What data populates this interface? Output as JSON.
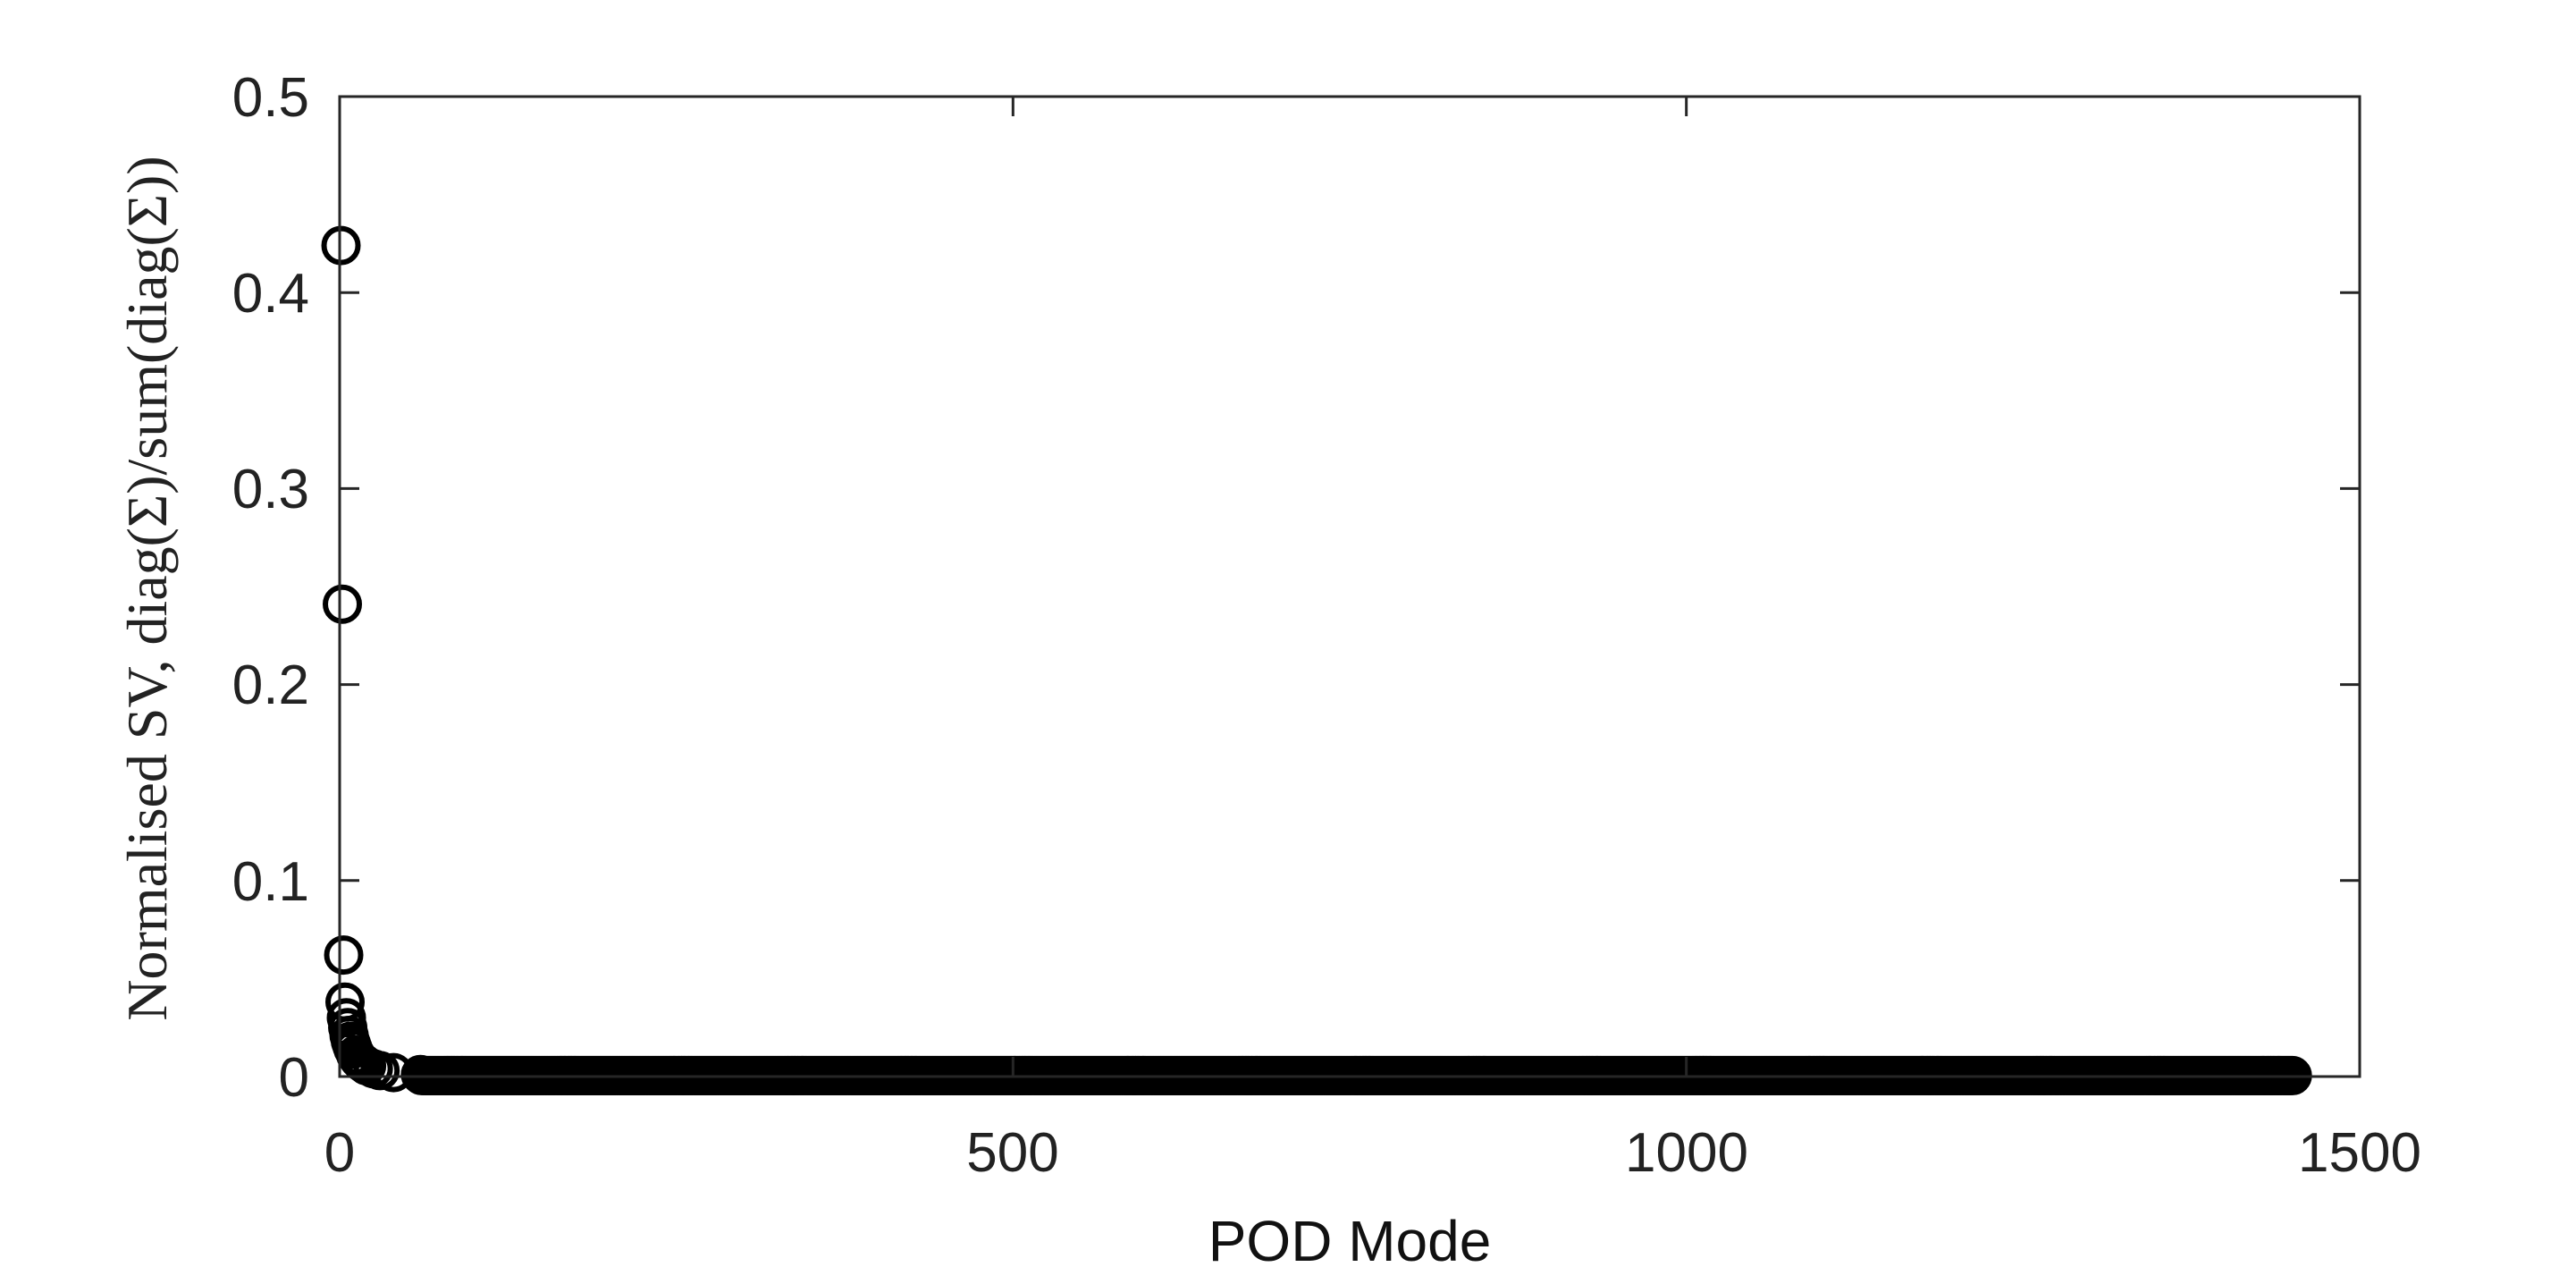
{
  "chart_data": {
    "type": "scatter",
    "title": "",
    "xlabel": "POD Mode",
    "ylabel": "Normalised SV, diag(Σ)/sum(diag(Σ))",
    "xlim": [
      0,
      1500
    ],
    "ylim": [
      0,
      0.5
    ],
    "x_ticks": [
      "0",
      "500",
      "1000",
      "1500"
    ],
    "y_ticks": [
      "0",
      "0.1",
      "0.2",
      "0.3",
      "0.4",
      "0.5"
    ],
    "grid": false,
    "legend": "none",
    "marker": "open-circle",
    "color": "#000000",
    "points": [
      {
        "x": 1,
        "y": 0.424
      },
      {
        "x": 2,
        "y": 0.241
      },
      {
        "x": 3,
        "y": 0.062
      },
      {
        "x": 4,
        "y": 0.038
      },
      {
        "x": 5,
        "y": 0.03
      },
      {
        "x": 6,
        "y": 0.025
      },
      {
        "x": 7,
        "y": 0.021
      },
      {
        "x": 8,
        "y": 0.018
      },
      {
        "x": 9,
        "y": 0.016
      },
      {
        "x": 10,
        "y": 0.014
      },
      {
        "x": 12,
        "y": 0.011
      },
      {
        "x": 14,
        "y": 0.009
      },
      {
        "x": 16,
        "y": 0.0075
      },
      {
        "x": 18,
        "y": 0.0065
      },
      {
        "x": 20,
        "y": 0.0055
      },
      {
        "x": 25,
        "y": 0.004
      },
      {
        "x": 30,
        "y": 0.003
      },
      {
        "x": 40,
        "y": 0.002
      },
      {
        "x": 60,
        "y": 0.001
      }
    ],
    "tail": {
      "x_start": 61,
      "x_end": 1450,
      "y": 0.0005
    }
  }
}
